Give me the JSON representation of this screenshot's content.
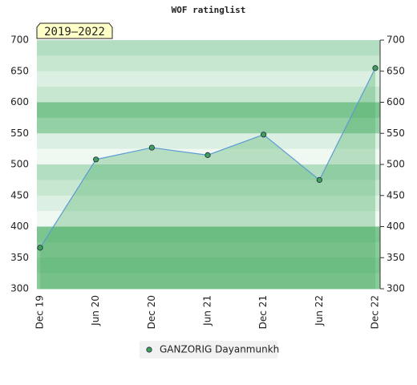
{
  "chart_data": {
    "type": "line",
    "title": "WOF ratinglist",
    "annotation": "2019–2022",
    "categories": [
      "Dec 19",
      "Jun 20",
      "Dec 20",
      "Jun 21",
      "Dec 21",
      "Jun 22",
      "Dec 22"
    ],
    "series": [
      {
        "name": "GANZORIG Dayanmunkh",
        "color": "#5b9bd5",
        "values": [
          366,
          508,
          527,
          515,
          548,
          475,
          655
        ]
      }
    ],
    "ylim": [
      300,
      700
    ],
    "yticks": [
      300,
      350,
      400,
      450,
      500,
      550,
      600,
      650,
      700
    ],
    "legend": "bottom"
  }
}
